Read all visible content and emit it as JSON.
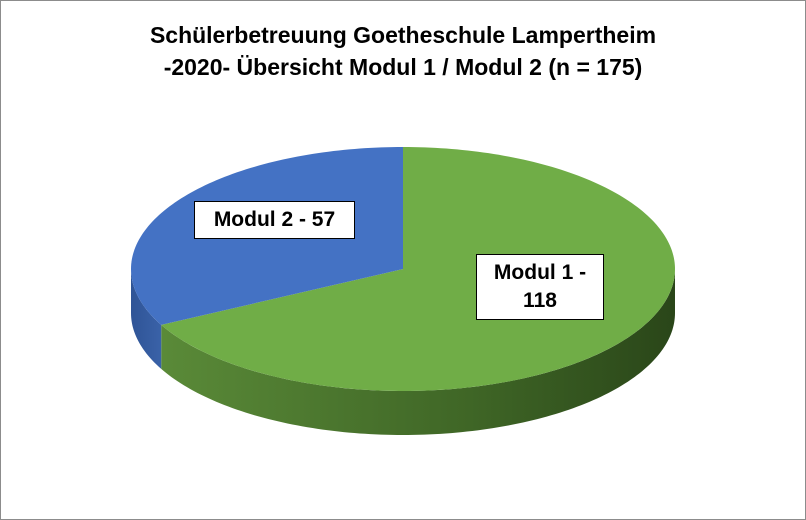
{
  "chart_data": {
    "type": "pie3d",
    "title": [
      "Schülerbetreuung Goetheschule Lampertheim",
      "-2020- Übersicht Modul 1 / Modul 2 (n = 175)"
    ],
    "values": [
      118,
      57
    ],
    "value_labels": [
      "Modul 1 - 118",
      "Modul 2 - 57"
    ],
    "colors": [
      "#70ad47",
      "#4472c4"
    ]
  }
}
